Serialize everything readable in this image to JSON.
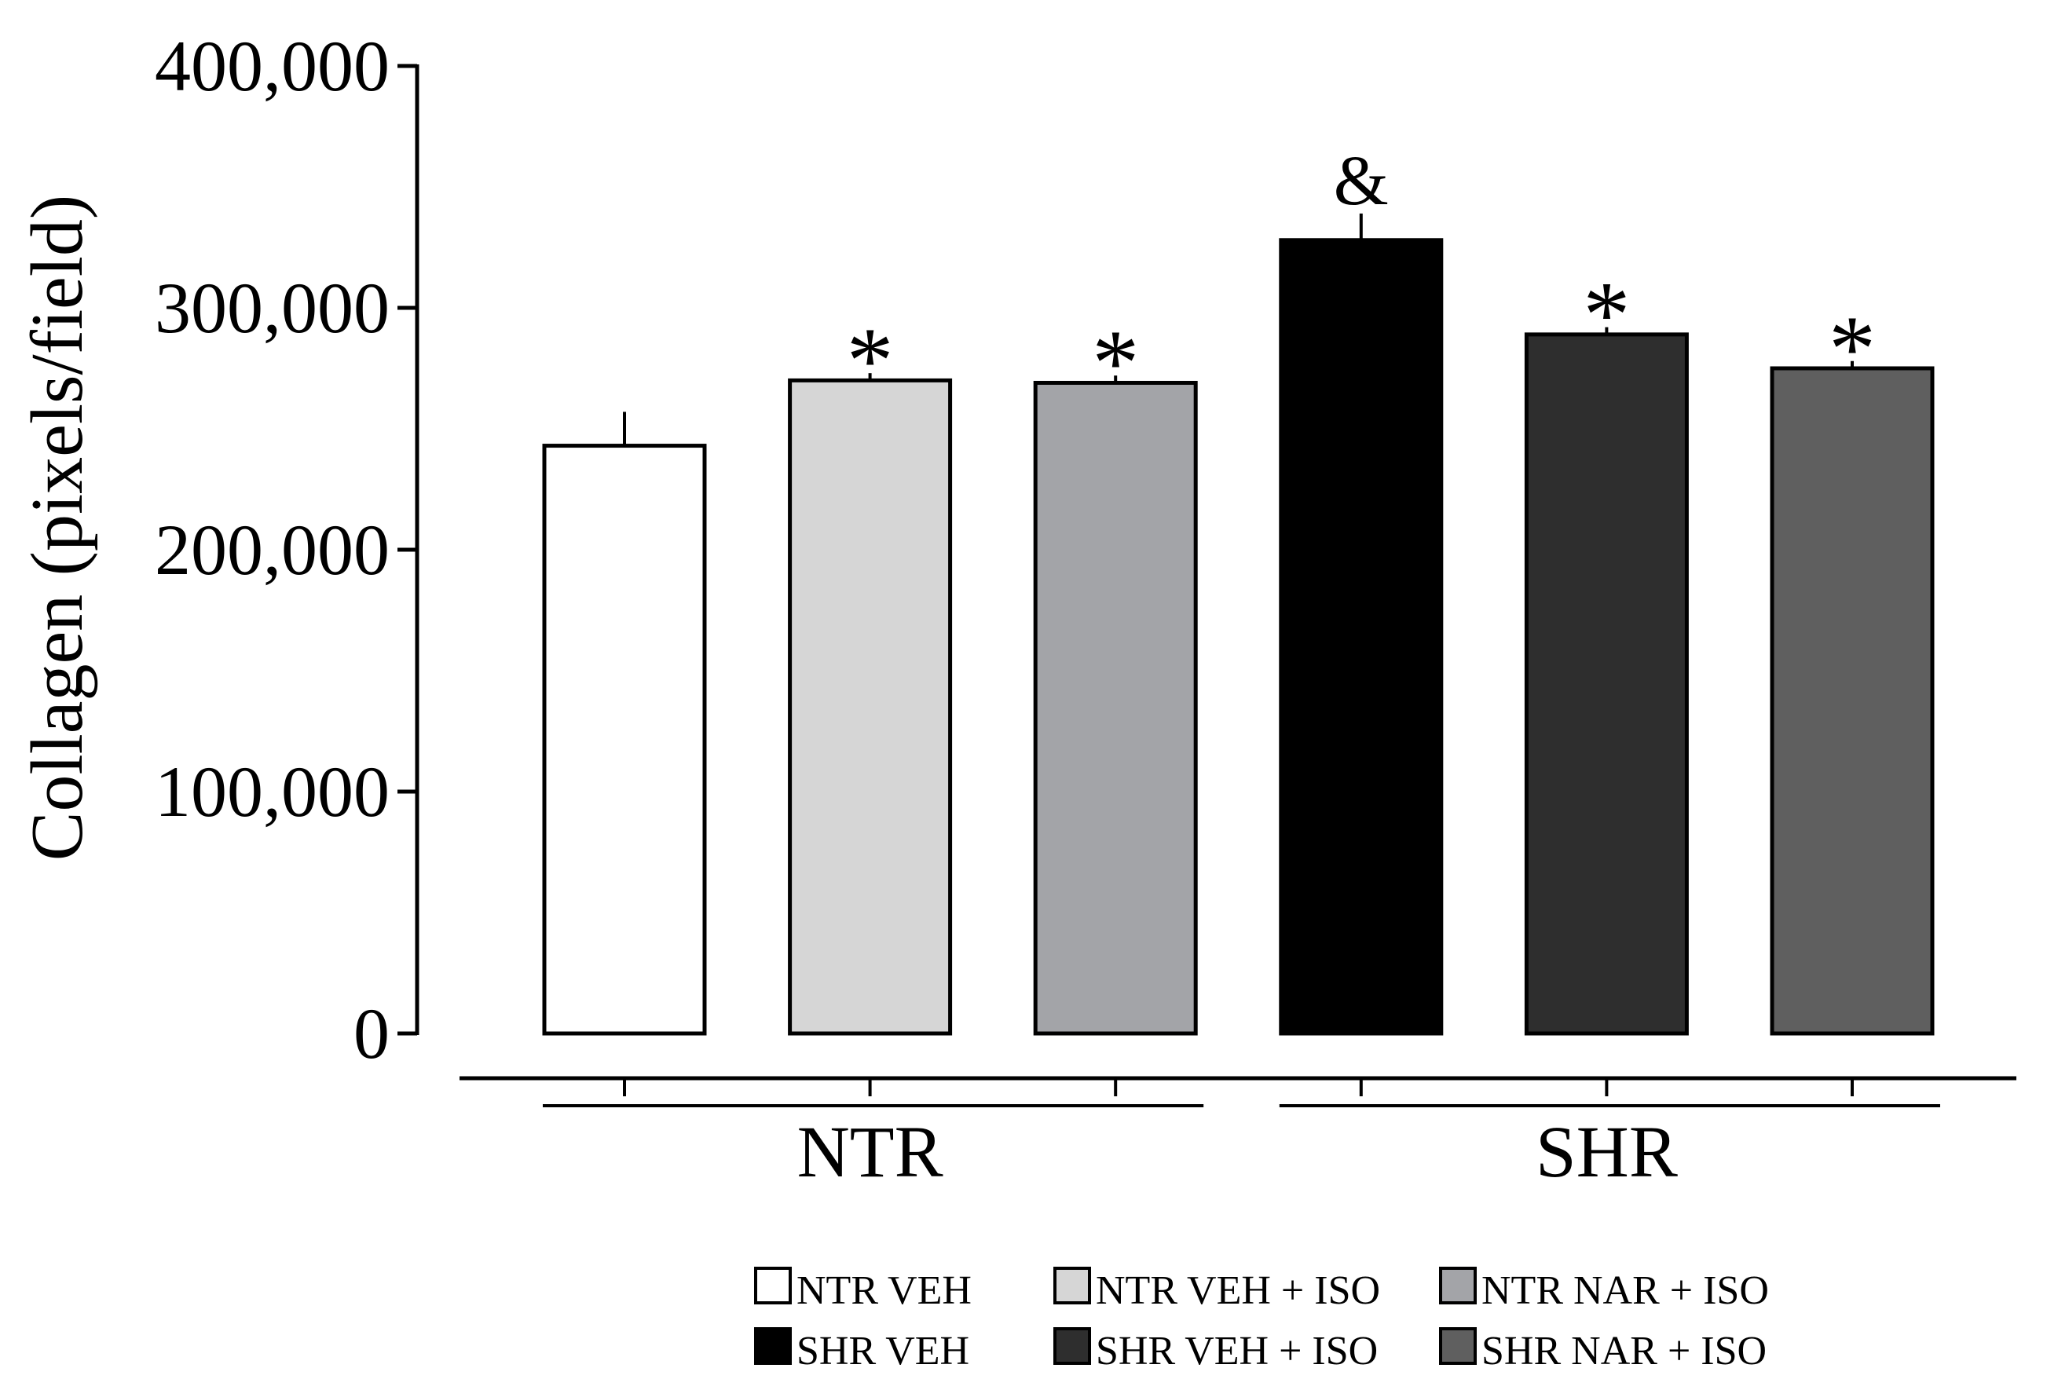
{
  "chart_data": {
    "type": "bar",
    "ylabel": "Collagen (pixels/field)",
    "ylim": [
      0,
      400000
    ],
    "yticks": [
      0,
      100000,
      200000,
      300000,
      400000
    ],
    "y_tick_labels": [
      "0",
      "100,000",
      "200,000",
      "300,000",
      "400,000"
    ],
    "categories": [
      "NTR VEH",
      "NTR VEH + ISO",
      "NTR NAR + ISO",
      "SHR VEH",
      "SHR VEH + ISO",
      "SHR NAR + ISO"
    ],
    "values": [
      243000,
      270000,
      269000,
      328000,
      289000,
      275000
    ],
    "errors": [
      14000,
      3000,
      3000,
      11000,
      3000,
      3000
    ],
    "annotations": [
      null,
      "*",
      "*",
      "&",
      "*",
      "*"
    ],
    "colors": [
      "#ffffff",
      "#d6d6d6",
      "#a3a4a8",
      "#000000",
      "#2e2e2e",
      "#5f5f5f"
    ],
    "groups": [
      {
        "label": "NTR",
        "bars": [
          0,
          1,
          2
        ]
      },
      {
        "label": "SHR",
        "bars": [
          3,
          4,
          5
        ]
      }
    ],
    "legend_position": "bottom",
    "grid": false
  },
  "style": {
    "axis_color": "#000000",
    "background": "#ffffff"
  }
}
